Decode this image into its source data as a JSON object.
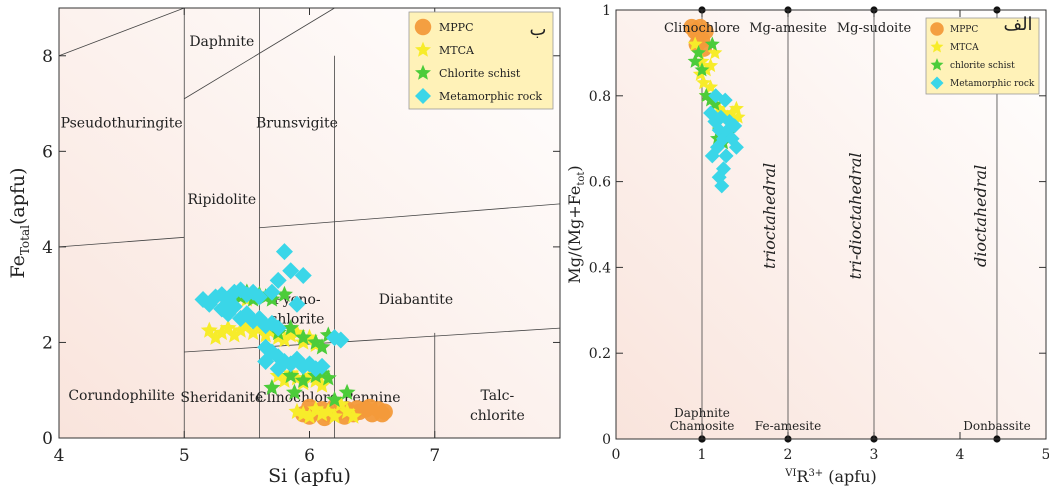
{
  "chart_data": [
    {
      "type": "scatter",
      "panel_label": "ب",
      "xlabel": "Si (apfu)",
      "ylabel_main": "Fe",
      "ylabel_sub": "Total",
      "ylabel_unit": "(apfu)",
      "xlim": [
        4,
        8
      ],
      "ylim": [
        0,
        9
      ],
      "xticks": [
        4,
        5,
        6,
        7
      ],
      "yticks": [
        0,
        2,
        4,
        6,
        8
      ],
      "legend_position": "top-right",
      "background": "#f9e4dc",
      "boundaries": [
        {
          "x1": 4.0,
          "y1": 8.0,
          "x2": 5.0,
          "y2": 9.0
        },
        {
          "x1": 5.0,
          "y1": 7.1,
          "x2": 6.2,
          "y2": 9.0
        },
        {
          "x1": 4.0,
          "y1": 4.0,
          "x2": 5.0,
          "y2": 4.2
        },
        {
          "x1": 5.6,
          "y1": 4.4,
          "x2": 8.0,
          "y2": 4.9
        },
        {
          "x1": 5.0,
          "y1": 1.8,
          "x2": 8.0,
          "y2": 2.3
        },
        {
          "x1": 5.0,
          "y1": 0.0,
          "x2": 5.0,
          "y2": 9.0
        },
        {
          "x1": 5.6,
          "y1": 0.0,
          "x2": 5.6,
          "y2": 9.0
        },
        {
          "x1": 6.2,
          "y1": 0.0,
          "x2": 6.2,
          "y2": 8.0
        },
        {
          "x1": 7.0,
          "y1": 0.0,
          "x2": 7.0,
          "y2": 2.2
        }
      ],
      "regions": [
        {
          "label": "Daphnite",
          "x": 5.3,
          "y": 8.2
        },
        {
          "label": "Pseudothuringite",
          "x": 4.5,
          "y": 6.5
        },
        {
          "label": "Brunsvigite",
          "x": 5.9,
          "y": 6.5
        },
        {
          "label": "Ripidolite",
          "x": 5.3,
          "y": 4.9
        },
        {
          "label": "Pycno-",
          "x": 5.9,
          "y": 2.8
        },
        {
          "label": "chlorite",
          "x": 5.9,
          "y": 2.4
        },
        {
          "label": "Diabantite",
          "x": 6.85,
          "y": 2.8
        },
        {
          "label": "Corundophilite",
          "x": 4.5,
          "y": 0.8
        },
        {
          "label": "Sheridanite",
          "x": 5.3,
          "y": 0.75
        },
        {
          "label": "Clinochlore",
          "x": 5.9,
          "y": 0.75
        },
        {
          "label": "Pennine",
          "x": 6.5,
          "y": 0.75
        },
        {
          "label": "Talc-",
          "x": 7.5,
          "y": 0.8
        },
        {
          "label": "chlorite",
          "x": 7.5,
          "y": 0.38
        }
      ],
      "series": [
        {
          "name": "MPPC",
          "marker": "circle",
          "color": "#f39a3a",
          "points": [
            [
              5.95,
              0.5
            ],
            [
              6.0,
              0.45
            ],
            [
              6.05,
              0.55
            ],
            [
              6.1,
              0.6
            ],
            [
              6.15,
              0.5
            ],
            [
              6.2,
              0.65
            ],
            [
              6.25,
              0.55
            ],
            [
              6.3,
              0.6
            ],
            [
              6.35,
              0.5
            ],
            [
              6.4,
              0.55
            ],
            [
              6.45,
              0.6
            ],
            [
              6.5,
              0.5
            ],
            [
              6.55,
              0.6
            ],
            [
              6.6,
              0.55
            ],
            [
              6.0,
              0.65
            ],
            [
              6.28,
              0.45
            ],
            [
              6.48,
              0.65
            ],
            [
              6.58,
              0.5
            ],
            [
              6.38,
              0.62
            ],
            [
              6.12,
              0.42
            ]
          ]
        },
        {
          "name": "MTCA",
          "marker": "star",
          "color": "#f7ec2a",
          "points": [
            [
              5.2,
              2.25
            ],
            [
              5.25,
              2.1
            ],
            [
              5.3,
              2.2
            ],
            [
              5.35,
              2.3
            ],
            [
              5.4,
              2.15
            ],
            [
              5.45,
              2.25
            ],
            [
              5.5,
              2.35
            ],
            [
              5.55,
              2.2
            ],
            [
              5.6,
              2.3
            ],
            [
              5.65,
              2.15
            ],
            [
              5.7,
              2.25
            ],
            [
              5.75,
              2.1
            ],
            [
              5.8,
              2.05
            ],
            [
              5.85,
              2.15
            ],
            [
              5.9,
              2.2
            ],
            [
              5.95,
              2.0
            ],
            [
              6.0,
              2.1
            ],
            [
              6.05,
              1.95
            ],
            [
              5.75,
              1.3
            ],
            [
              5.8,
              1.2
            ],
            [
              5.85,
              1.35
            ],
            [
              5.9,
              1.25
            ],
            [
              5.95,
              1.15
            ],
            [
              6.0,
              1.3
            ],
            [
              6.05,
              1.2
            ],
            [
              6.1,
              1.1
            ],
            [
              5.9,
              0.55
            ],
            [
              5.95,
              0.5
            ],
            [
              6.0,
              0.45
            ],
            [
              6.05,
              0.6
            ],
            [
              6.1,
              0.5
            ],
            [
              6.15,
              0.55
            ],
            [
              6.2,
              0.45
            ],
            [
              6.3,
              0.55
            ],
            [
              6.35,
              0.45
            ],
            [
              6.25,
              0.7
            ],
            [
              5.5,
              2.9
            ]
          ]
        },
        {
          "name": "Chlorite schist",
          "marker": "star",
          "color": "#4ccc3a",
          "points": [
            [
              5.4,
              3.0
            ],
            [
              5.45,
              2.95
            ],
            [
              5.5,
              3.05
            ],
            [
              5.55,
              2.9
            ],
            [
              5.6,
              3.0
            ],
            [
              5.65,
              2.95
            ],
            [
              5.7,
              2.9
            ],
            [
              5.8,
              3.0
            ],
            [
              5.75,
              2.2
            ],
            [
              5.85,
              2.3
            ],
            [
              5.95,
              2.1
            ],
            [
              6.05,
              2.0
            ],
            [
              6.1,
              1.9
            ],
            [
              6.15,
              2.15
            ],
            [
              5.85,
              1.3
            ],
            [
              5.95,
              1.2
            ],
            [
              6.05,
              1.3
            ],
            [
              6.1,
              1.35
            ],
            [
              6.15,
              1.25
            ],
            [
              5.7,
              1.05
            ],
            [
              6.3,
              0.95
            ],
            [
              6.2,
              0.8
            ],
            [
              5.88,
              0.95
            ]
          ]
        },
        {
          "name": "Metamorphic rock",
          "marker": "diamond",
          "color": "#3ad6e8",
          "points": [
            [
              5.15,
              2.9
            ],
            [
              5.2,
              2.8
            ],
            [
              5.25,
              2.95
            ],
            [
              5.3,
              3.0
            ],
            [
              5.35,
              2.9
            ],
            [
              5.4,
              3.05
            ],
            [
              5.45,
              3.1
            ],
            [
              5.5,
              3.0
            ],
            [
              5.55,
              3.05
            ],
            [
              5.6,
              2.95
            ],
            [
              5.3,
              2.7
            ],
            [
              5.35,
              2.6
            ],
            [
              5.4,
              2.75
            ],
            [
              5.45,
              2.5
            ],
            [
              5.5,
              2.6
            ],
            [
              5.55,
              2.45
            ],
            [
              5.6,
              2.5
            ],
            [
              5.65,
              2.35
            ],
            [
              5.7,
              2.4
            ],
            [
              5.75,
              2.3
            ],
            [
              5.65,
              1.9
            ],
            [
              5.7,
              1.8
            ],
            [
              5.75,
              1.7
            ],
            [
              5.8,
              1.6
            ],
            [
              5.85,
              1.55
            ],
            [
              5.9,
              1.65
            ],
            [
              5.95,
              1.5
            ],
            [
              6.0,
              1.55
            ],
            [
              6.05,
              1.45
            ],
            [
              6.1,
              1.5
            ],
            [
              5.8,
              3.9
            ],
            [
              5.75,
              3.3
            ],
            [
              5.85,
              3.5
            ],
            [
              5.95,
              3.4
            ],
            [
              5.7,
              3.05
            ],
            [
              5.9,
              2.8
            ],
            [
              6.2,
              2.1
            ],
            [
              6.25,
              2.05
            ],
            [
              5.65,
              1.6
            ],
            [
              5.75,
              1.45
            ]
          ]
        }
      ]
    },
    {
      "type": "scatter",
      "panel_label": "الف",
      "xlabel_prefix": "VI",
      "xlabel_main": "R",
      "xlabel_sup": "3+",
      "xlabel_unit": " (apfu)",
      "ylabel_main": "Mg/(Mg+Fe",
      "ylabel_sub": "tot",
      "ylabel_close": ")",
      "xlim": [
        0,
        5
      ],
      "ylim": [
        0,
        1
      ],
      "xticks": [
        0,
        1,
        2,
        3,
        4,
        5
      ],
      "yticks": [
        0,
        0.2,
        0.4,
        0.6,
        0.8,
        1
      ],
      "ytick_labels": [
        "0",
        "0.2",
        "0.4",
        "0.6",
        "0.8",
        "1"
      ],
      "legend_position": "top-right",
      "background": "#f9e4dc",
      "vertical_lines": [
        1.0,
        2.0,
        3.0,
        4.43
      ],
      "endmembers": [
        {
          "label": "Clinochlore",
          "x": 1.0,
          "y": 1.0,
          "label_pos": "bottom"
        },
        {
          "label": "Mg-amesite",
          "x": 2.0,
          "y": 1.0,
          "label_pos": "bottom"
        },
        {
          "label": "Mg-sudoite",
          "x": 3.0,
          "y": 1.0,
          "label_pos": "bottom"
        },
        {
          "label": "Daphnite",
          "x": 1.0,
          "y": 0.0,
          "label_pos": "top2"
        },
        {
          "label": "Chamosite",
          "x": 1.0,
          "y": 0.0,
          "label_pos": "top1"
        },
        {
          "label": "Fe-amesite",
          "x": 2.0,
          "y": 0.0,
          "label_pos": "top1"
        },
        {
          "label": "Donbassite",
          "x": 4.43,
          "y": 0.0,
          "label_pos": "top1"
        }
      ],
      "extra_points": [
        [
          3.0,
          0.0
        ],
        [
          4.43,
          1.0
        ]
      ],
      "fields": [
        {
          "label": "trioctahedral",
          "x": 1.85,
          "y": 0.52
        },
        {
          "label": "tri-dioctahedral",
          "x": 2.85,
          "y": 0.52
        },
        {
          "label": "dioctahedral",
          "x": 4.3,
          "y": 0.52
        }
      ],
      "series": [
        {
          "name": "MPPC",
          "marker": "circle",
          "color": "#f39a3a",
          "points": [
            [
              0.88,
              0.96
            ],
            [
              0.92,
              0.95
            ],
            [
              0.96,
              0.94
            ],
            [
              1.0,
              0.93
            ],
            [
              1.04,
              0.95
            ],
            [
              0.94,
              0.92
            ],
            [
              0.98,
              0.96
            ],
            [
              1.02,
              0.91
            ]
          ]
        },
        {
          "name": "MTCA",
          "marker": "star",
          "color": "#f7ec2a",
          "points": [
            [
              0.92,
              0.92
            ],
            [
              0.96,
              0.9
            ],
            [
              1.0,
              0.88
            ],
            [
              1.05,
              0.86
            ],
            [
              0.98,
              0.85
            ],
            [
              1.02,
              0.83
            ],
            [
              1.1,
              0.82
            ],
            [
              1.05,
              0.8
            ],
            [
              1.15,
              0.78
            ],
            [
              1.2,
              0.77
            ],
            [
              1.25,
              0.76
            ],
            [
              1.3,
              0.75
            ],
            [
              1.35,
              0.76
            ],
            [
              1.4,
              0.77
            ],
            [
              1.38,
              0.74
            ],
            [
              1.42,
              0.75
            ],
            [
              1.15,
              0.9
            ],
            [
              1.1,
              0.87
            ]
          ]
        },
        {
          "name": "chlorite schist",
          "marker": "star",
          "color": "#4ccc3a",
          "points": [
            [
              0.92,
              0.88
            ],
            [
              0.96,
              0.9
            ],
            [
              1.0,
              0.86
            ],
            [
              1.05,
              0.8
            ],
            [
              1.1,
              0.79
            ],
            [
              1.15,
              0.78
            ],
            [
              1.2,
              0.72
            ],
            [
              1.22,
              0.7
            ],
            [
              1.25,
              0.69
            ],
            [
              1.3,
              0.71
            ],
            [
              1.12,
              0.92
            ],
            [
              1.18,
              0.7
            ]
          ]
        },
        {
          "name": "Metamorphic rock",
          "marker": "diamond",
          "color": "#3ad6e8",
          "points": [
            [
              1.1,
              0.76
            ],
            [
              1.15,
              0.74
            ],
            [
              1.2,
              0.72
            ],
            [
              1.25,
              0.7
            ],
            [
              1.3,
              0.72
            ],
            [
              1.35,
              0.7
            ],
            [
              1.4,
              0.68
            ],
            [
              1.38,
              0.73
            ],
            [
              1.28,
              0.66
            ],
            [
              1.25,
              0.63
            ],
            [
              1.2,
              0.61
            ],
            [
              1.23,
              0.59
            ],
            [
              1.12,
              0.66
            ],
            [
              1.18,
              0.68
            ],
            [
              1.22,
              0.75
            ],
            [
              1.32,
              0.74
            ],
            [
              1.16,
              0.8
            ],
            [
              1.27,
              0.79
            ]
          ]
        }
      ]
    }
  ]
}
